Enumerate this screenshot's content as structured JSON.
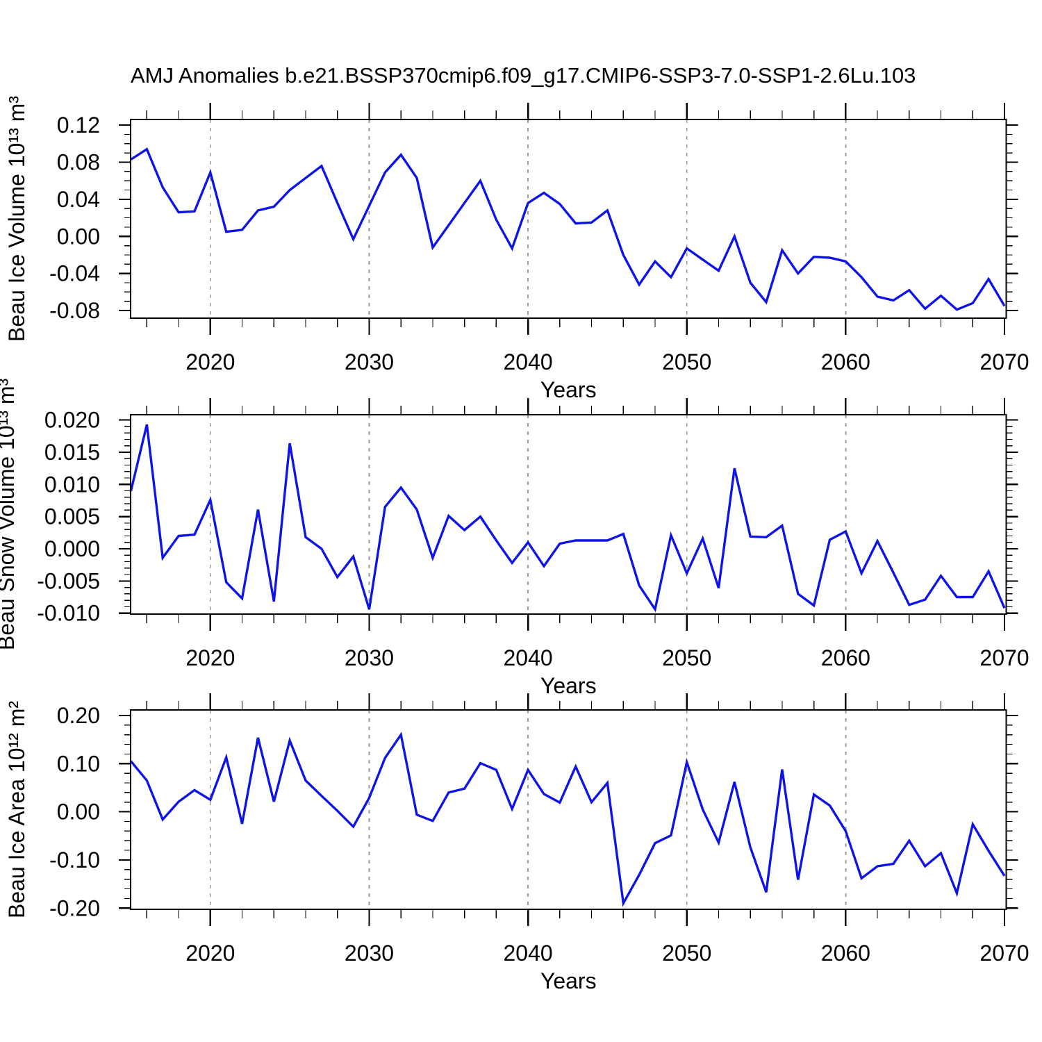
{
  "title": "AMJ Anomalies b.e21.BSSP370cmip6.f09_g17.CMIP6-SSP3-7.0-SSP1-2.6Lu.103",
  "colors": {
    "line": "#0f14e6",
    "grid": "#9a9a9a",
    "axis": "#000000",
    "background": "#ffffff"
  },
  "chart_data": {
    "type": "line",
    "x_label": "Years",
    "xlim": [
      2015,
      2070
    ],
    "x_years": [
      2015,
      2016,
      2017,
      2018,
      2019,
      2020,
      2021,
      2022,
      2023,
      2024,
      2025,
      2026,
      2027,
      2028,
      2029,
      2030,
      2031,
      2032,
      2033,
      2034,
      2035,
      2036,
      2037,
      2038,
      2039,
      2040,
      2041,
      2042,
      2043,
      2044,
      2045,
      2046,
      2047,
      2048,
      2049,
      2050,
      2051,
      2052,
      2053,
      2054,
      2055,
      2056,
      2057,
      2058,
      2059,
      2060,
      2061,
      2062,
      2063,
      2064,
      2065,
      2066,
      2067,
      2068,
      2069,
      2070
    ],
    "x_major_ticks": [
      2020,
      2030,
      2040,
      2050,
      2060,
      2070
    ],
    "x_major_labels": [
      "2020",
      "2030",
      "2040",
      "2050",
      "2060",
      "2070"
    ],
    "x_minor_start": 2016,
    "x_minor_step": 2,
    "grid_years": [
      2020,
      2030,
      2040,
      2050,
      2060
    ],
    "panels": [
      {
        "id": "ice-volume",
        "ylabel": "Beau Ice Volume 10¹³ m³",
        "ylim": [
          -0.0882,
          0.1261
        ],
        "ytick_values": [
          0.12,
          0.08,
          0.04,
          0.0,
          -0.04,
          -0.08
        ],
        "ytick_labels": [
          "0.12",
          "0.08",
          "0.04",
          "0.00",
          "-0.04",
          "-0.08"
        ],
        "y_major_step": 0.04,
        "y_minor_step": 0.01,
        "values": [
          0.083,
          0.094,
          0.053,
          0.026,
          0.027,
          0.069,
          0.005,
          0.007,
          0.028,
          0.032,
          0.05,
          0.063,
          0.076,
          0.036,
          -0.003,
          0.033,
          0.069,
          0.088,
          0.063,
          -0.012,
          0.012,
          0.036,
          0.06,
          0.018,
          -0.013,
          0.036,
          0.047,
          0.035,
          0.014,
          0.015,
          0.028,
          -0.02,
          -0.052,
          -0.027,
          -0.044,
          -0.013,
          -0.025,
          -0.037,
          0.0,
          -0.05,
          -0.071,
          -0.015,
          -0.04,
          -0.022,
          -0.023,
          -0.027,
          -0.044,
          -0.065,
          -0.069,
          -0.058,
          -0.078,
          -0.064,
          -0.079,
          -0.072,
          -0.046,
          -0.075
        ]
      },
      {
        "id": "snow-volume",
        "ylabel": "Beau Snow Volume 10¹³ m³",
        "ylim": [
          -0.01014,
          0.02082
        ],
        "ytick_values": [
          0.02,
          0.015,
          0.01,
          0.005,
          0.0,
          -0.005,
          -0.01
        ],
        "ytick_labels": [
          "0.020",
          "0.015",
          "0.010",
          "0.005",
          "0.000",
          "-0.005",
          "-0.010"
        ],
        "y_major_step": 0.005,
        "y_minor_step": 0.001,
        "values": [
          0.009,
          0.0193,
          -0.0014,
          0.002,
          0.0022,
          0.0076,
          -0.0052,
          -0.0077,
          0.0061,
          -0.0082,
          0.0164,
          0.0018,
          0.0,
          -0.0044,
          -0.0012,
          -0.0094,
          0.0065,
          0.0095,
          0.0061,
          -0.0014,
          0.0051,
          0.0029,
          0.005,
          0.0013,
          -0.0022,
          0.001,
          -0.0027,
          0.0008,
          0.0013,
          0.0013,
          0.0013,
          0.0023,
          -0.0057,
          -0.0094,
          0.0021,
          -0.0038,
          0.0016,
          -0.0061,
          0.0125,
          0.0019,
          0.0018,
          0.0036,
          -0.007,
          -0.0088,
          0.0014,
          0.0027,
          -0.0038,
          0.0012,
          -0.0037,
          -0.0087,
          -0.0079,
          -0.0042,
          -0.0075,
          -0.0075,
          -0.0035,
          -0.0092
        ]
      },
      {
        "id": "ice-area",
        "ylabel": "Beau Ice Area 10¹² m²",
        "ylim": [
          -0.2025,
          0.2115
        ],
        "ytick_values": [
          0.2,
          0.1,
          0.0,
          -0.1,
          -0.2
        ],
        "ytick_labels": [
          "0.20",
          "0.10",
          "0.00",
          "-0.10",
          "-0.20"
        ],
        "y_major_step": 0.1,
        "y_minor_step": 0.02,
        "values": [
          0.105,
          0.065,
          -0.016,
          0.021,
          0.045,
          0.025,
          0.113,
          -0.025,
          0.154,
          0.021,
          0.148,
          0.065,
          0.033,
          0.002,
          -0.031,
          0.029,
          0.112,
          0.16,
          -0.006,
          -0.019,
          0.04,
          0.048,
          0.101,
          0.087,
          0.006,
          0.087,
          0.037,
          0.019,
          0.094,
          0.02,
          0.06,
          -0.19,
          -0.131,
          -0.065,
          -0.049,
          0.103,
          0.005,
          -0.064,
          0.062,
          -0.074,
          -0.167,
          0.088,
          -0.141,
          0.036,
          0.013,
          -0.04,
          -0.138,
          -0.113,
          -0.108,
          -0.06,
          -0.113,
          -0.086,
          -0.169,
          -0.026,
          -0.081,
          -0.133
        ]
      }
    ]
  }
}
